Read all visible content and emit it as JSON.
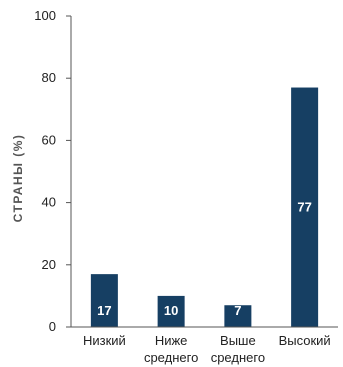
{
  "chart_data": {
    "type": "bar",
    "categories": [
      [
        "Низкий"
      ],
      [
        "Ниже",
        "среднего"
      ],
      [
        "Выше",
        "среднего"
      ],
      [
        "Высокий"
      ]
    ],
    "values": [
      17,
      10,
      7,
      77
    ],
    "data_labels": [
      "17",
      "10",
      "7",
      "77"
    ],
    "ylabel": "СТРАНЫ (%)",
    "ylim": [
      0,
      100
    ],
    "yticks": [
      "0",
      "20",
      "40",
      "60",
      "80",
      "100"
    ],
    "ytick_values": [
      0,
      20,
      40,
      60,
      80,
      100
    ],
    "grid": false,
    "bar_color": "#163f63",
    "axis_color": "#555555"
  }
}
